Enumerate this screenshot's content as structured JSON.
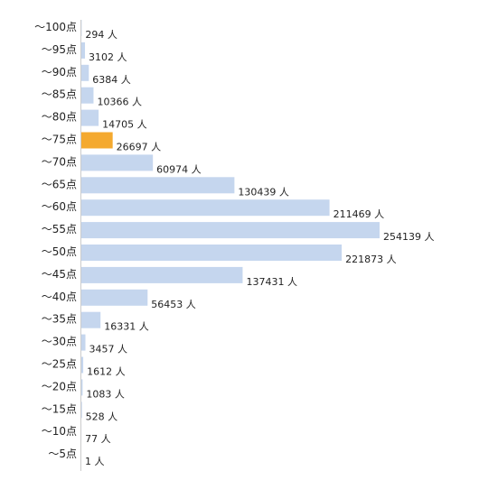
{
  "chart_data": {
    "type": "bar",
    "orientation": "horizontal",
    "categories": [
      "～100点",
      "～95点",
      "～90点",
      "～85点",
      "～80点",
      "～75点",
      "～70点",
      "～65点",
      "～60点",
      "～55点",
      "～50点",
      "～45点",
      "～40点",
      "～35点",
      "～30点",
      "～25点",
      "～20点",
      "～15点",
      "～10点",
      "～5点"
    ],
    "values": [
      294,
      3102,
      6384,
      10366,
      14705,
      26697,
      60974,
      130439,
      211469,
      254139,
      221873,
      137431,
      56453,
      16331,
      3457,
      1612,
      1083,
      528,
      77,
      1
    ],
    "value_suffix": " 人",
    "highlight_category": "～75点",
    "colors": {
      "bar": "#c5d6ee",
      "highlight": "#f4a92f",
      "axis": "#cccccc"
    },
    "xlim": [
      0,
      254139
    ],
    "grid": false,
    "legend": "none"
  }
}
